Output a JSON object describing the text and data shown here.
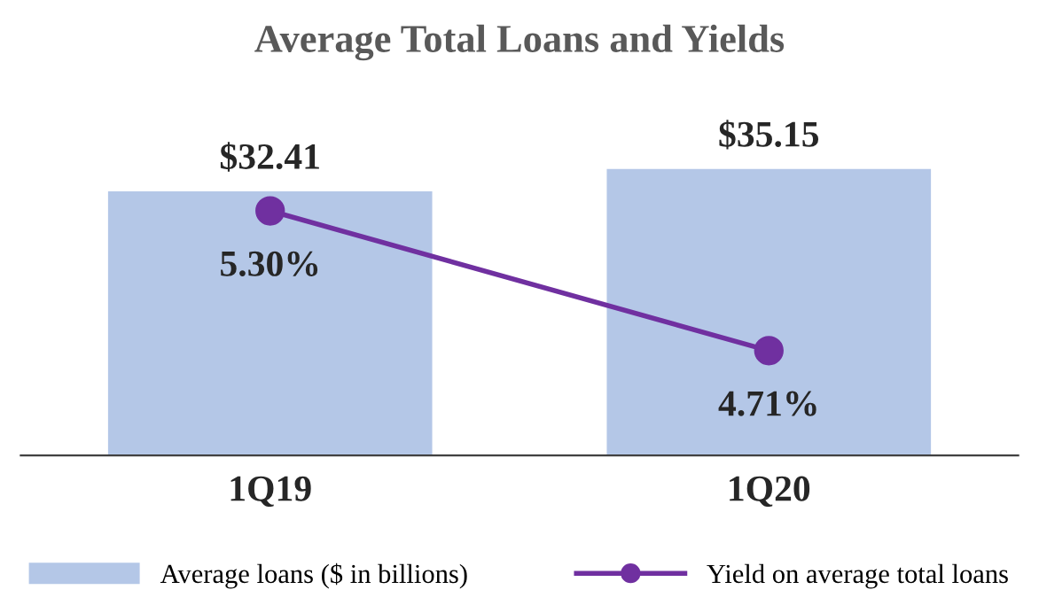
{
  "chart_data": {
    "type": "bar",
    "title": "Average Total Loans and Yields",
    "categories": [
      "1Q19",
      "1Q20"
    ],
    "series": [
      {
        "name": "Average loans ($ in billions)",
        "type": "bar",
        "color": "#b4c7e7",
        "values": [
          32.41,
          35.15
        ],
        "value_labels": [
          "$32.41",
          "$35.15"
        ]
      },
      {
        "name": "Yield on average total loans",
        "type": "line",
        "axis": "y2",
        "color": "#7030a0",
        "values": [
          5.3,
          4.71
        ],
        "value_labels": [
          "5.30%",
          "4.71%"
        ]
      }
    ],
    "tick_labels": "x",
    "legend": "bottom",
    "marker": "circle",
    "line_style": "solid",
    "grid": false
  }
}
